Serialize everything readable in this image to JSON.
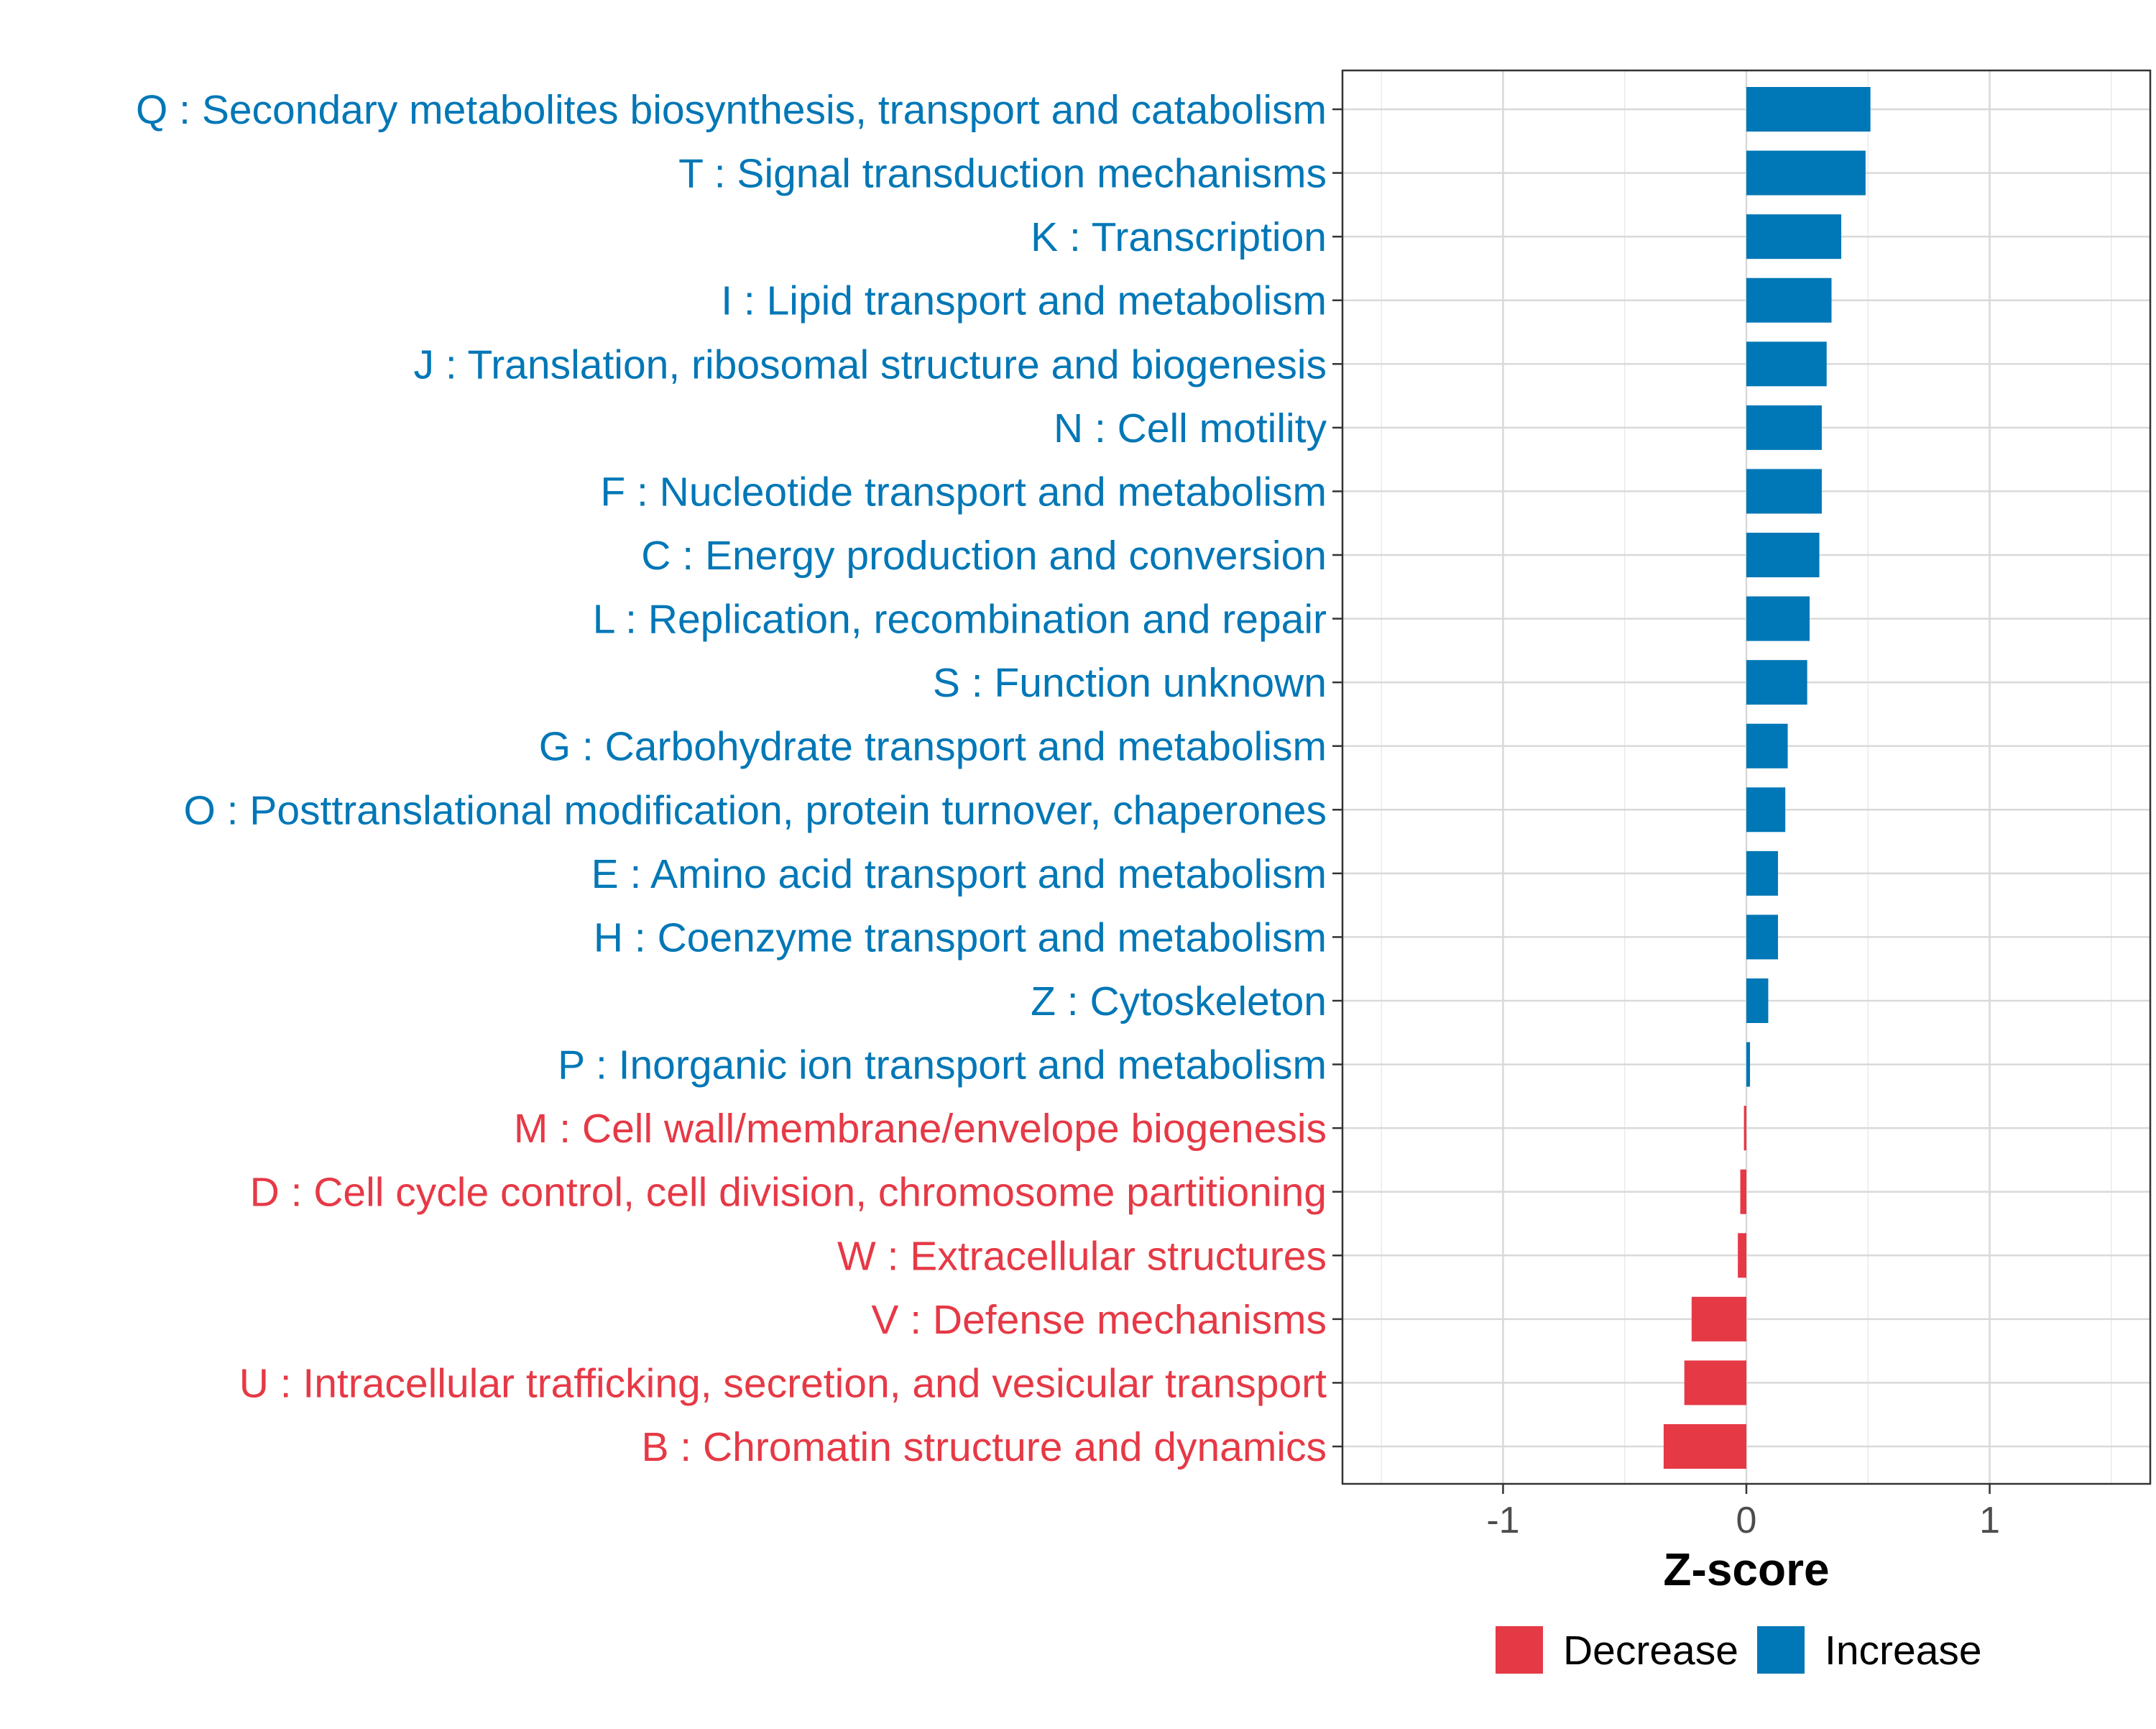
{
  "chart_data": {
    "type": "bar",
    "orientation": "horizontal",
    "title": "",
    "xlabel": "Z-score",
    "ylabel": "",
    "xlim": [
      -1.66,
      1.66
    ],
    "xticks": [
      -1,
      0,
      1
    ],
    "xtick_labels": [
      "-1",
      "0",
      "1"
    ],
    "grid": true,
    "legend_position": "bottom",
    "colors": {
      "Decrease": "#E63946",
      "Increase": "#0077B6"
    },
    "legend": [
      {
        "name": "Decrease",
        "color": "#E63946"
      },
      {
        "name": "Increase",
        "color": "#0077B6"
      }
    ],
    "categories": [
      "Q : Secondary metabolites biosynthesis, transport and catabolism",
      "T : Signal transduction mechanisms",
      "K : Transcription",
      "I : Lipid transport and metabolism",
      "J : Translation, ribosomal structure and biogenesis",
      "N : Cell motility",
      "F : Nucleotide transport and metabolism",
      "C : Energy production and conversion",
      "L : Replication, recombination and repair",
      "S : Function unknown",
      "G : Carbohydrate transport and metabolism",
      "O : Posttranslational modification, protein turnover, chaperones",
      "E : Amino acid transport and metabolism",
      "H : Coenzyme transport and metabolism",
      "Z : Cytoskeleton",
      "P : Inorganic ion transport and metabolism",
      "M : Cell wall/membrane/envelope biogenesis",
      "D : Cell cycle control, cell division, chromosome partitioning",
      "W : Extracellular structures",
      "V : Defense mechanisms",
      "U : Intracellular trafficking, secretion, and vesicular transport",
      "B : Chromatin structure and dynamics"
    ],
    "values": [
      0.51,
      0.49,
      0.39,
      0.35,
      0.33,
      0.31,
      0.31,
      0.3,
      0.26,
      0.25,
      0.17,
      0.16,
      0.13,
      0.13,
      0.09,
      0.015,
      -0.01,
      -0.025,
      -0.035,
      -0.225,
      -0.255,
      -0.34
    ],
    "groups": [
      "Increase",
      "Increase",
      "Increase",
      "Increase",
      "Increase",
      "Increase",
      "Increase",
      "Increase",
      "Increase",
      "Increase",
      "Increase",
      "Increase",
      "Increase",
      "Increase",
      "Increase",
      "Increase",
      "Decrease",
      "Decrease",
      "Decrease",
      "Decrease",
      "Decrease",
      "Decrease"
    ]
  }
}
